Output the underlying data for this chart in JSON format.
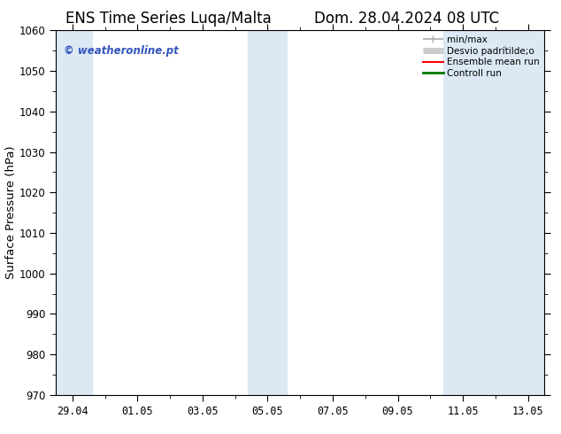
{
  "title_left": "ENS Time Series Luqa/Malta",
  "title_right": "Dom. 28.04.2024 08 UTC",
  "ylabel": "Surface Pressure (hPa)",
  "ylim": [
    970,
    1060
  ],
  "yticks": [
    970,
    980,
    990,
    1000,
    1010,
    1020,
    1030,
    1040,
    1050,
    1060
  ],
  "xtick_labels": [
    "29.04",
    "01.05",
    "03.05",
    "05.05",
    "07.05",
    "09.05",
    "11.05",
    "13.05"
  ],
  "xtick_positions": [
    0,
    2,
    4,
    6,
    8,
    10,
    12,
    14
  ],
  "background_color": "#ffffff",
  "plot_bg_color": "#ffffff",
  "shaded_color": "#dce9f5",
  "watermark_text": "© weatheronline.pt",
  "watermark_color": "#3355bb",
  "legend_labels": [
    "min/max",
    "Desvio padrítilde;o",
    "Ensemble mean run",
    "Controll run"
  ],
  "legend_colors": [
    "#aaaaaa",
    "#cccccc",
    "#ff0000",
    "#007700"
  ],
  "legend_lws": [
    1.2,
    5,
    1.5,
    2
  ],
  "title_fontsize": 12,
  "tick_fontsize": 8.5,
  "ylabel_fontsize": 9.5
}
